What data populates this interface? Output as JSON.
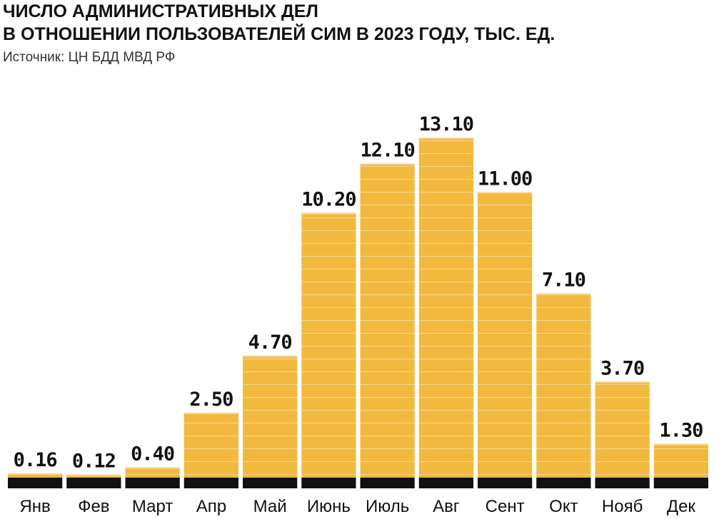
{
  "chart_data": {
    "type": "bar",
    "title": [
      "ЧИСЛО АДМИНИСТРАТИВНЫХ ДЕЛ",
      "В ОТНОШЕНИИ ПОЛЬЗОВАТЕЛЕЙ СИМ В 2023 ГОДУ, ТЫС. ЕД."
    ],
    "subtitle": "Источник: ЦН БДД МВД РФ",
    "categories": [
      "Янв",
      "Фев",
      "Март",
      "Апр",
      "Май",
      "Июнь",
      "Июль",
      "Авг",
      "Сент",
      "Окт",
      "Нояб",
      "Дек"
    ],
    "values": [
      0.16,
      0.12,
      0.4,
      2.5,
      4.7,
      10.2,
      12.1,
      13.1,
      11.0,
      7.1,
      3.7,
      1.3
    ],
    "value_labels": [
      "0.16",
      "0.12",
      "0.40",
      "2.50",
      "4.70",
      "10.20",
      "12.10",
      "13.10",
      "11.00",
      "7.10",
      "3.70",
      "1.30"
    ],
    "color": "#f2b93f"
  }
}
